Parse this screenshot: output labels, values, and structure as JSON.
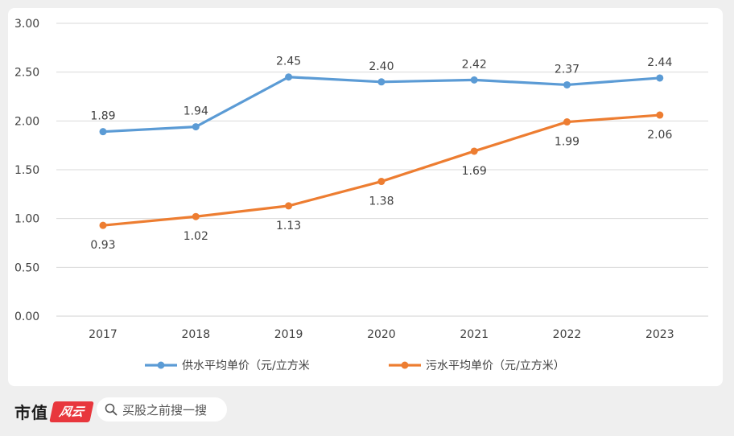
{
  "chart_data": {
    "type": "line",
    "title": "",
    "xlabel": "",
    "ylabel": "",
    "categories": [
      "2017",
      "2018",
      "2019",
      "2020",
      "2021",
      "2022",
      "2023"
    ],
    "ylim": [
      0,
      3
    ],
    "yticks": [
      "0.00",
      "0.50",
      "1.00",
      "1.50",
      "2.00",
      "2.50",
      "3.00"
    ],
    "grid": true,
    "legend_position": "bottom",
    "series": [
      {
        "name": "供水平均单价（元/立方米",
        "color": "#5b9bd5",
        "values": [
          1.89,
          1.94,
          2.45,
          2.4,
          2.42,
          2.37,
          2.44
        ],
        "labels": [
          "1.89",
          "1.94",
          "2.45",
          "2.40",
          "2.42",
          "2.37",
          "2.44"
        ],
        "label_position": "above"
      },
      {
        "name": "污水平均单价（元/立方米）",
        "color": "#ed7d31",
        "values": [
          0.93,
          1.02,
          1.13,
          1.38,
          1.69,
          1.99,
          2.06
        ],
        "labels": [
          "0.93",
          "1.02",
          "1.13",
          "1.38",
          "1.69",
          "1.99",
          "2.06"
        ],
        "label_position": "below"
      }
    ]
  },
  "footer": {
    "brand_text": "市值",
    "brand_mark": "风云",
    "search_icon": "search-icon",
    "search_text": "买股之前搜一搜"
  },
  "watermark": "市值风云"
}
